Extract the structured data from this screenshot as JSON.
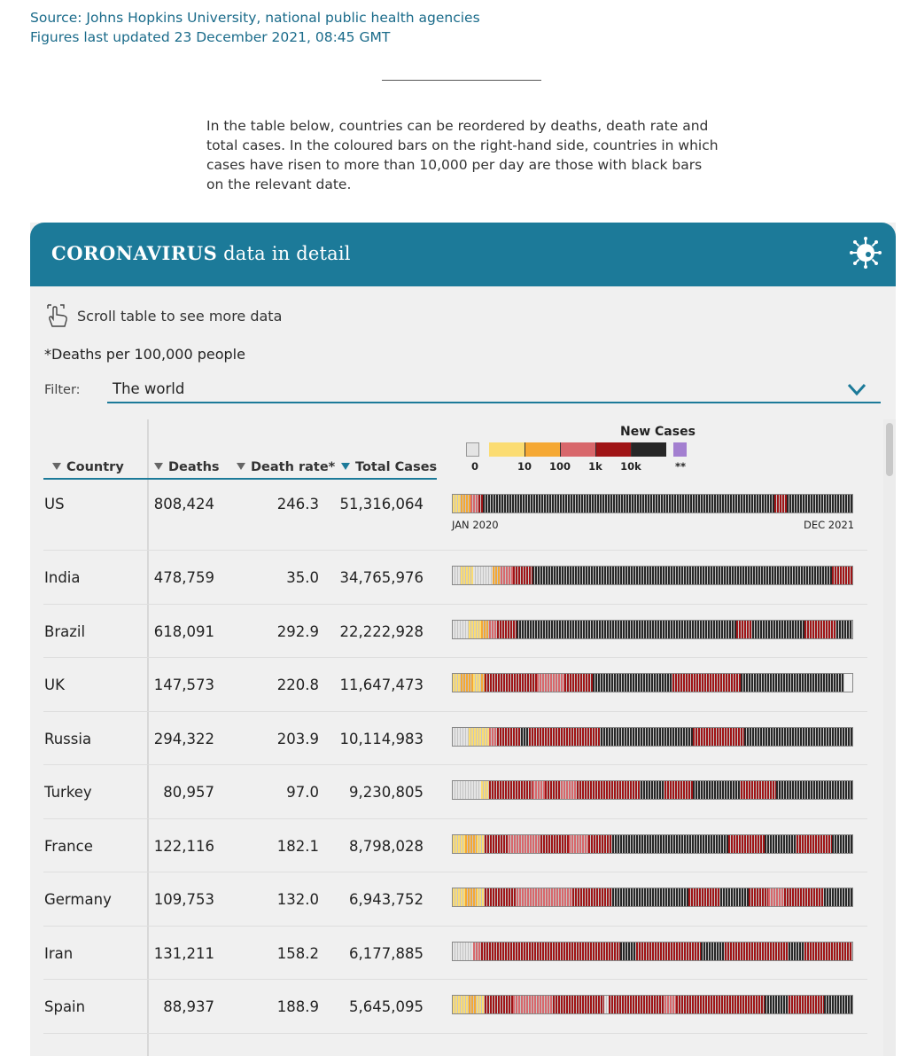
{
  "source": {
    "line1": "Source: Johns Hopkins University, national public health agencies",
    "line2": "Figures last updated 23 December 2021, 08:45 GMT"
  },
  "intro": "In the table below, countries can be reordered by deaths, death rate and total cases. In the coloured bars on the right-hand side, countries in which cases have risen to more than 10,000 per day are those with black bars on the relevant date.",
  "card": {
    "title_bold": "CORONAVIRUS",
    "title_rest": " data in detail",
    "icon": "virus-icon",
    "scroll_hint": "Scroll table to see more data",
    "footnote": "*Deaths per 100,000 people",
    "filter_label": "Filter:",
    "filter_value": "The world"
  },
  "table": {
    "columns": [
      "Country",
      "Deaths",
      "Death rate*",
      "Total Cases"
    ],
    "sorted_column": "Total Cases",
    "legend": {
      "title": "New Cases",
      "labels": [
        "0",
        "10",
        "100",
        "1k",
        "10k",
        "**"
      ],
      "colors": {
        "zero": "#e4e4e4",
        "c10": "#fbdc72",
        "c100": "#f5a833",
        "c1k": "#d8676b",
        "c10k": "#a01416",
        "c10kplus": "#272727",
        "other": "#a37fd0"
      }
    },
    "axis": {
      "start": "JAN 2020",
      "end": "DEC 2021"
    },
    "rows": [
      {
        "country": "US",
        "deaths": "808,424",
        "rate": "246.3",
        "cases": "51,316,064",
        "timeline": [
          [
            "c10",
            0.02
          ],
          [
            "c100",
            0.025
          ],
          [
            "c1k",
            0.02
          ],
          [
            "c10k",
            0.01
          ],
          [
            "c10kplus",
            0.73
          ],
          [
            "c10k",
            0.03
          ],
          [
            "c10kplus",
            0.165
          ]
        ]
      },
      {
        "country": "India",
        "deaths": "478,759",
        "rate": "35.0",
        "cases": "34,765,976",
        "timeline": [
          [
            "zero",
            0.02
          ],
          [
            "c10",
            0.03
          ],
          [
            "zero",
            0.05
          ],
          [
            "c100",
            0.02
          ],
          [
            "c1k",
            0.03
          ],
          [
            "c10k",
            0.05
          ],
          [
            "c10kplus",
            0.75
          ],
          [
            "c10k",
            0.05
          ]
        ]
      },
      {
        "country": "Brazil",
        "deaths": "618,091",
        "rate": "292.9",
        "cases": "22,222,928",
        "timeline": [
          [
            "zero",
            0.04
          ],
          [
            "c10",
            0.03
          ],
          [
            "c100",
            0.02
          ],
          [
            "c1k",
            0.02
          ],
          [
            "c10k",
            0.05
          ],
          [
            "c10kplus",
            0.55
          ],
          [
            "c10k",
            0.04
          ],
          [
            "c10kplus",
            0.13
          ],
          [
            "c10k",
            0.08
          ],
          [
            "c10kplus",
            0.04
          ]
        ]
      },
      {
        "country": "UK",
        "deaths": "147,573",
        "rate": "220.8",
        "cases": "11,647,473",
        "timeline": [
          [
            "c10",
            0.02
          ],
          [
            "c100",
            0.03
          ],
          [
            "c10",
            0.02
          ],
          [
            "c100",
            0.01
          ],
          [
            "c10k",
            0.13
          ],
          [
            "c1k",
            0.07
          ],
          [
            "c10k",
            0.07
          ],
          [
            "c10kplus",
            0.2
          ],
          [
            "c10k",
            0.17
          ],
          [
            "c10kplus",
            0.26
          ]
        ]
      },
      {
        "country": "Russia",
        "deaths": "294,322",
        "rate": "203.9",
        "cases": "10,114,983",
        "timeline": [
          [
            "zero",
            0.04
          ],
          [
            "c10",
            0.05
          ],
          [
            "c1k",
            0.02
          ],
          [
            "c10k",
            0.06
          ],
          [
            "c10kplus",
            0.02
          ],
          [
            "c10k",
            0.18
          ],
          [
            "c10kplus",
            0.23
          ],
          [
            "c10k",
            0.13
          ],
          [
            "c10kplus",
            0.27
          ]
        ]
      },
      {
        "country": "Turkey",
        "deaths": "80,957",
        "rate": "97.0",
        "cases": "9,230,805",
        "timeline": [
          [
            "zero",
            0.07
          ],
          [
            "c10",
            0.02
          ],
          [
            "c10k",
            0.11
          ],
          [
            "c1k",
            0.03
          ],
          [
            "c10k",
            0.04
          ],
          [
            "c1k",
            0.04
          ],
          [
            "c10k",
            0.16
          ],
          [
            "c10kplus",
            0.06
          ],
          [
            "c10k",
            0.07
          ],
          [
            "c10kplus",
            0.12
          ],
          [
            "c10k",
            0.09
          ],
          [
            "c10kplus",
            0.19
          ]
        ]
      },
      {
        "country": "France",
        "deaths": "122,116",
        "rate": "182.1",
        "cases": "8,798,028",
        "timeline": [
          [
            "c10",
            0.03
          ],
          [
            "c100",
            0.03
          ],
          [
            "c10",
            0.02
          ],
          [
            "c10k",
            0.06
          ],
          [
            "c1k",
            0.08
          ],
          [
            "c10k",
            0.07
          ],
          [
            "c1k",
            0.05
          ],
          [
            "c10k",
            0.06
          ],
          [
            "c10kplus",
            0.29
          ],
          [
            "c10k",
            0.09
          ],
          [
            "c10kplus",
            0.08
          ],
          [
            "c10k",
            0.09
          ],
          [
            "c10kplus",
            0.05
          ]
        ]
      },
      {
        "country": "Germany",
        "deaths": "109,753",
        "rate": "132.0",
        "cases": "6,943,752",
        "timeline": [
          [
            "c10",
            0.03
          ],
          [
            "c100",
            0.03
          ],
          [
            "c10",
            0.02
          ],
          [
            "c10k",
            0.08
          ],
          [
            "c1k",
            0.14
          ],
          [
            "c10k",
            0.1
          ],
          [
            "c10kplus",
            0.19
          ],
          [
            "c10k",
            0.08
          ],
          [
            "c10kplus",
            0.07
          ],
          [
            "c10k",
            0.05
          ],
          [
            "c1k",
            0.04
          ],
          [
            "c10k",
            0.1
          ],
          [
            "c10kplus",
            0.07
          ]
        ]
      },
      {
        "country": "Iran",
        "deaths": "131,211",
        "rate": "158.2",
        "cases": "6,177,885",
        "timeline": [
          [
            "zero",
            0.05
          ],
          [
            "c1k",
            0.02
          ],
          [
            "c10k",
            0.35
          ],
          [
            "c10kplus",
            0.04
          ],
          [
            "c10k",
            0.16
          ],
          [
            "c10kplus",
            0.06
          ],
          [
            "c10k",
            0.16
          ],
          [
            "c10kplus",
            0.04
          ],
          [
            "c10k",
            0.12
          ]
        ]
      },
      {
        "country": "Spain",
        "deaths": "88,937",
        "rate": "188.9",
        "cases": "5,645,095",
        "timeline": [
          [
            "c10",
            0.04
          ],
          [
            "c100",
            0.02
          ],
          [
            "c10",
            0.02
          ],
          [
            "c10k",
            0.07
          ],
          [
            "c1k",
            0.1
          ],
          [
            "c10k",
            0.13
          ],
          [
            "zero",
            0.01
          ],
          [
            "c10k",
            0.14
          ],
          [
            "c1k",
            0.03
          ],
          [
            "c10k",
            0.22
          ],
          [
            "c10kplus",
            0.06
          ],
          [
            "c10k",
            0.09
          ],
          [
            "c10kplus",
            0.07
          ]
        ]
      }
    ]
  }
}
